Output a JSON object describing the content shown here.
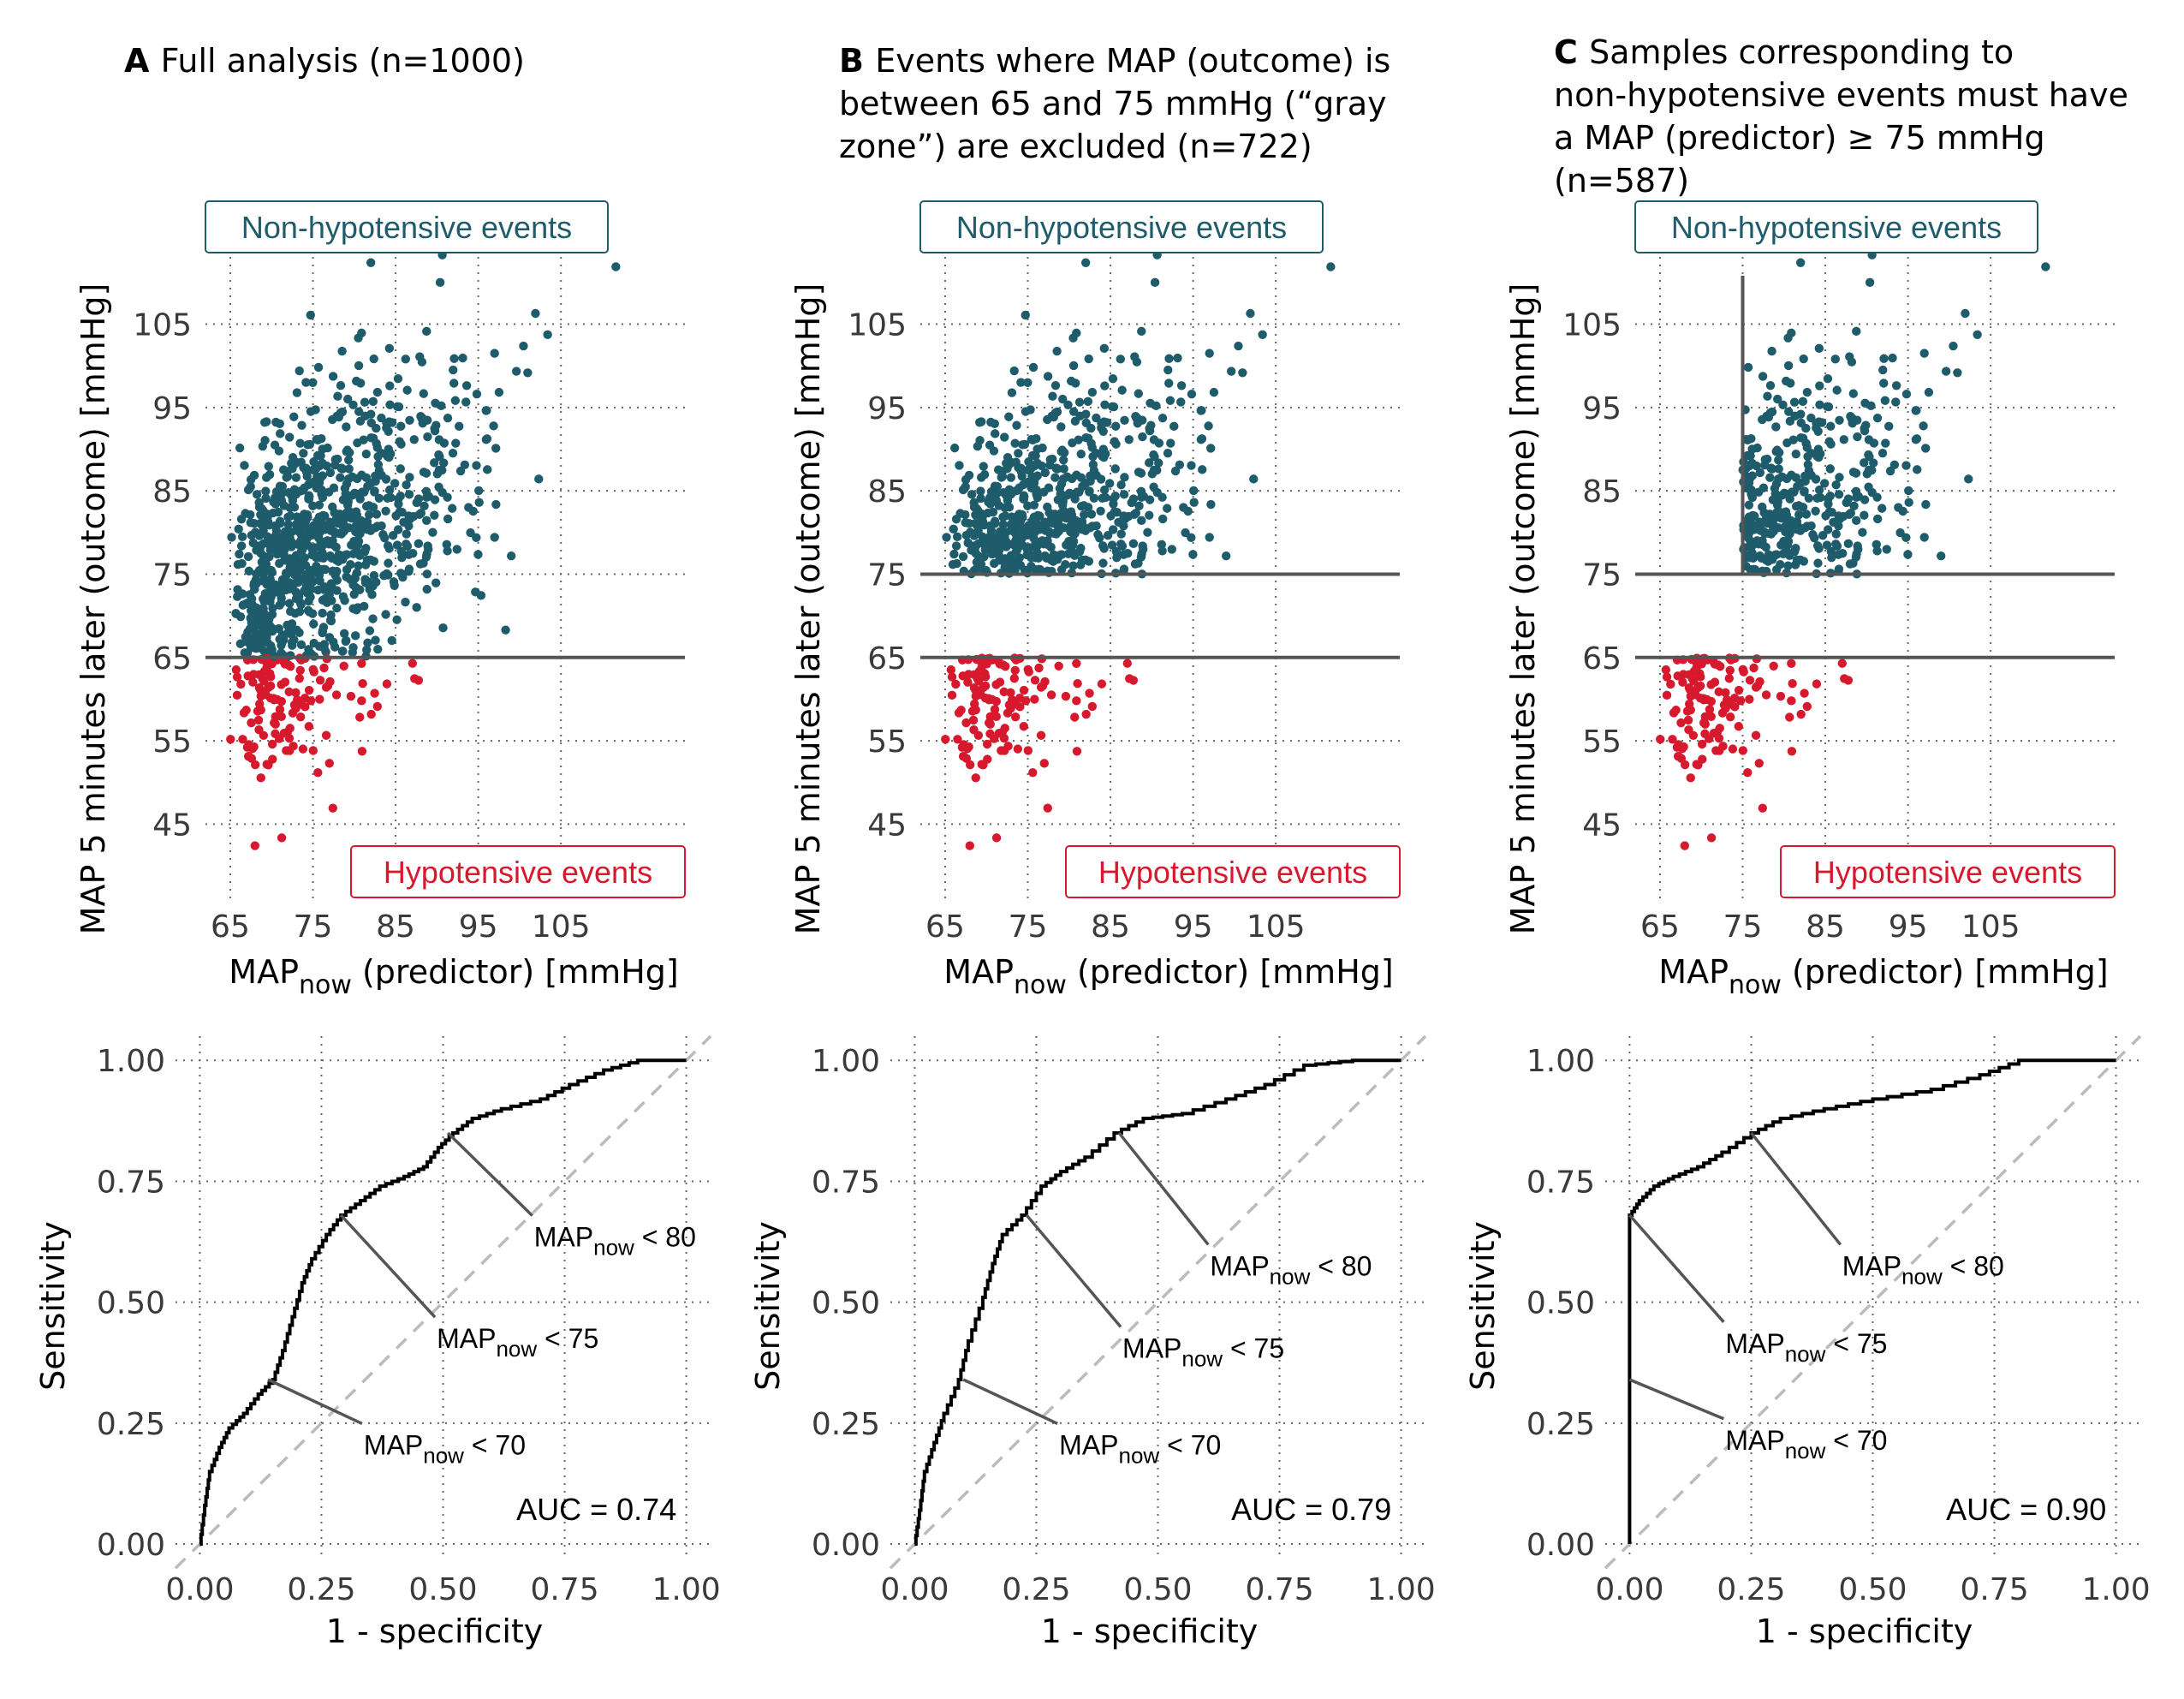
{
  "colors": {
    "non_hypotensive": "#1f5c6b",
    "hypotensive": "#d7192e",
    "threshold_line": "#555555",
    "roc_curve": "#000000",
    "diagonal": "#bbbbbb"
  },
  "chart_data": [
    {
      "type": "scatter",
      "panel": "A",
      "title": "Full analysis (n=1000)",
      "title_lines": [
        "Full analysis (n=1000)"
      ],
      "xlabel_main": "MAP",
      "xlabel_sub": "now",
      "xlabel_rest": " (predictor) [mmHg]",
      "ylabel": "MAP 5 minutes later (outcome) [mmHg]",
      "xlim": [
        62,
        120
      ],
      "ylim": [
        36,
        118
      ],
      "xticks": [
        65,
        75,
        85,
        95,
        105
      ],
      "yticks": [
        45,
        55,
        65,
        75,
        85,
        95,
        105
      ],
      "grid": true,
      "top_box": "Non-hypotensive events",
      "bottom_box": "Hypotensive events",
      "threshold_y": [
        65
      ],
      "threshold_x": null,
      "n": 1000,
      "exclusion": null
    },
    {
      "type": "scatter",
      "panel": "B",
      "title": "Events where MAP (outcome) is between 65 and 75 mmHg (“gray zone”) are excluded (n=722)",
      "title_lines": [
        "Events where MAP (outcome) is",
        "between 65 and 75 mmHg (“gray",
        "zone”) are excluded (n=722)"
      ],
      "xlabel_main": "MAP",
      "xlabel_sub": "now",
      "xlabel_rest": " (predictor) [mmHg]",
      "ylabel": "MAP 5 minutes later (outcome) [mmHg]",
      "xlim": [
        62,
        120
      ],
      "ylim": [
        36,
        118
      ],
      "xticks": [
        65,
        75,
        85,
        95,
        105
      ],
      "yticks": [
        45,
        55,
        65,
        75,
        85,
        95,
        105
      ],
      "grid": true,
      "top_box": "Non-hypotensive events",
      "bottom_box": "Hypotensive events",
      "threshold_y": [
        65,
        75
      ],
      "threshold_x": null,
      "n": 722,
      "exclusion": "grayzone"
    },
    {
      "type": "scatter",
      "panel": "C",
      "title": "Samples corresponding to non-hypotensive events must have a MAP (predictor) ≥ 75 mmHg (n=587)",
      "title_lines": [
        "Samples corresponding to",
        "non-hypotensive events must have",
        "a MAP (predictor) ≥ 75 mmHg",
        "(n=587)"
      ],
      "xlabel_main": "MAP",
      "xlabel_sub": "now",
      "xlabel_rest": " (predictor) [mmHg]",
      "ylabel": "MAP 5 minutes later (outcome) [mmHg]",
      "xlim": [
        62,
        120
      ],
      "ylim": [
        36,
        118
      ],
      "xticks": [
        65,
        75,
        85,
        95,
        105
      ],
      "yticks": [
        45,
        55,
        65,
        75,
        85,
        95,
        105
      ],
      "grid": true,
      "top_box": "Non-hypotensive events",
      "bottom_box": "Hypotensive events",
      "threshold_y": [
        65,
        75
      ],
      "threshold_x": 75,
      "n": 587,
      "exclusion": "grayzone_and_predictor"
    },
    {
      "type": "line",
      "panel": "A",
      "xlabel": "1 - specificity",
      "ylabel": "Sensitivity",
      "xlim": [
        -0.05,
        1.05
      ],
      "ylim": [
        -0.03,
        1.05
      ],
      "xticks": [
        "0.00",
        "0.25",
        "0.50",
        "0.75",
        "1.00"
      ],
      "yticks": [
        "0.00",
        "0.25",
        "0.50",
        "0.75",
        "1.00"
      ],
      "grid": true,
      "auc": "AUC = 0.74",
      "roc_points": [
        [
          0,
          0
        ],
        [
          0.01,
          0.08
        ],
        [
          0.02,
          0.15
        ],
        [
          0.04,
          0.2
        ],
        [
          0.06,
          0.24
        ],
        [
          0.09,
          0.27
        ],
        [
          0.12,
          0.31
        ],
        [
          0.15,
          0.34
        ],
        [
          0.17,
          0.4
        ],
        [
          0.19,
          0.47
        ],
        [
          0.21,
          0.54
        ],
        [
          0.23,
          0.59
        ],
        [
          0.26,
          0.64
        ],
        [
          0.29,
          0.68
        ],
        [
          0.33,
          0.71
        ],
        [
          0.37,
          0.74
        ],
        [
          0.42,
          0.76
        ],
        [
          0.46,
          0.78
        ],
        [
          0.49,
          0.82
        ],
        [
          0.52,
          0.85
        ],
        [
          0.56,
          0.88
        ],
        [
          0.62,
          0.9
        ],
        [
          0.7,
          0.92
        ],
        [
          0.76,
          0.95
        ],
        [
          0.83,
          0.98
        ],
        [
          0.9,
          1.0
        ],
        [
          1.0,
          1.0
        ]
      ],
      "annotations": [
        {
          "main": "MAP",
          "sub": "now",
          "rest": " < 80",
          "point": [
            0.51,
            0.85
          ],
          "label_at": [
            0.68,
            0.64
          ]
        },
        {
          "main": "MAP",
          "sub": "now",
          "rest": " < 75",
          "point": [
            0.29,
            0.68
          ],
          "label_at": [
            0.48,
            0.43
          ]
        },
        {
          "main": "MAP",
          "sub": "now",
          "rest": " < 70",
          "point": [
            0.14,
            0.34
          ],
          "label_at": [
            0.33,
            0.21
          ]
        }
      ]
    },
    {
      "type": "line",
      "panel": "B",
      "xlabel": "1 - specificity",
      "ylabel": "Sensitivity",
      "xlim": [
        -0.05,
        1.05
      ],
      "ylim": [
        -0.03,
        1.05
      ],
      "xticks": [
        "0.00",
        "0.25",
        "0.50",
        "0.75",
        "1.00"
      ],
      "yticks": [
        "0.00",
        "0.25",
        "0.50",
        "0.75",
        "1.00"
      ],
      "grid": true,
      "auc": "AUC = 0.79",
      "roc_points": [
        [
          0,
          0
        ],
        [
          0.01,
          0.07
        ],
        [
          0.02,
          0.15
        ],
        [
          0.04,
          0.21
        ],
        [
          0.06,
          0.27
        ],
        [
          0.09,
          0.34
        ],
        [
          0.11,
          0.42
        ],
        [
          0.14,
          0.51
        ],
        [
          0.16,
          0.58
        ],
        [
          0.18,
          0.64
        ],
        [
          0.22,
          0.68
        ],
        [
          0.26,
          0.74
        ],
        [
          0.3,
          0.77
        ],
        [
          0.35,
          0.8
        ],
        [
          0.41,
          0.85
        ],
        [
          0.47,
          0.88
        ],
        [
          0.55,
          0.89
        ],
        [
          0.64,
          0.92
        ],
        [
          0.72,
          0.95
        ],
        [
          0.8,
          0.99
        ],
        [
          0.9,
          1.0
        ],
        [
          1.0,
          1.0
        ]
      ],
      "annotations": [
        {
          "main": "MAP",
          "sub": "now",
          "rest": " < 80",
          "point": [
            0.42,
            0.85
          ],
          "label_at": [
            0.6,
            0.58
          ]
        },
        {
          "main": "MAP",
          "sub": "now",
          "rest": " < 75",
          "point": [
            0.23,
            0.68
          ],
          "label_at": [
            0.42,
            0.41
          ]
        },
        {
          "main": "MAP",
          "sub": "now",
          "rest": " < 70",
          "point": [
            0.1,
            0.34
          ],
          "label_at": [
            0.29,
            0.21
          ]
        }
      ]
    },
    {
      "type": "line",
      "panel": "C",
      "xlabel": "1 - specificity",
      "ylabel": "Sensitivity",
      "xlim": [
        -0.05,
        1.05
      ],
      "ylim": [
        -0.03,
        1.05
      ],
      "xticks": [
        "0.00",
        "0.25",
        "0.50",
        "0.75",
        "1.00"
      ],
      "yticks": [
        "0.00",
        "0.25",
        "0.50",
        "0.75",
        "1.00"
      ],
      "grid": true,
      "auc": "AUC = 0.90",
      "roc_points": [
        [
          0,
          0
        ],
        [
          0,
          0.34
        ],
        [
          0,
          0.68
        ],
        [
          0.02,
          0.71
        ],
        [
          0.05,
          0.74
        ],
        [
          0.09,
          0.76
        ],
        [
          0.14,
          0.78
        ],
        [
          0.19,
          0.81
        ],
        [
          0.25,
          0.85
        ],
        [
          0.31,
          0.88
        ],
        [
          0.4,
          0.9
        ],
        [
          0.5,
          0.92
        ],
        [
          0.62,
          0.94
        ],
        [
          0.72,
          0.97
        ],
        [
          0.8,
          1.0
        ],
        [
          1.0,
          1.0
        ]
      ],
      "annotations": [
        {
          "main": "MAP",
          "sub": "now",
          "rest": " < 80",
          "point": [
            0.25,
            0.85
          ],
          "label_at": [
            0.43,
            0.58
          ]
        },
        {
          "main": "MAP",
          "sub": "now",
          "rest": " < 75",
          "point": [
            0.0,
            0.68
          ],
          "label_at": [
            0.19,
            0.42
          ]
        },
        {
          "main": "MAP",
          "sub": "now",
          "rest": " < 70",
          "point": [
            0.0,
            0.34
          ],
          "label_at": [
            0.19,
            0.22
          ]
        }
      ]
    }
  ]
}
